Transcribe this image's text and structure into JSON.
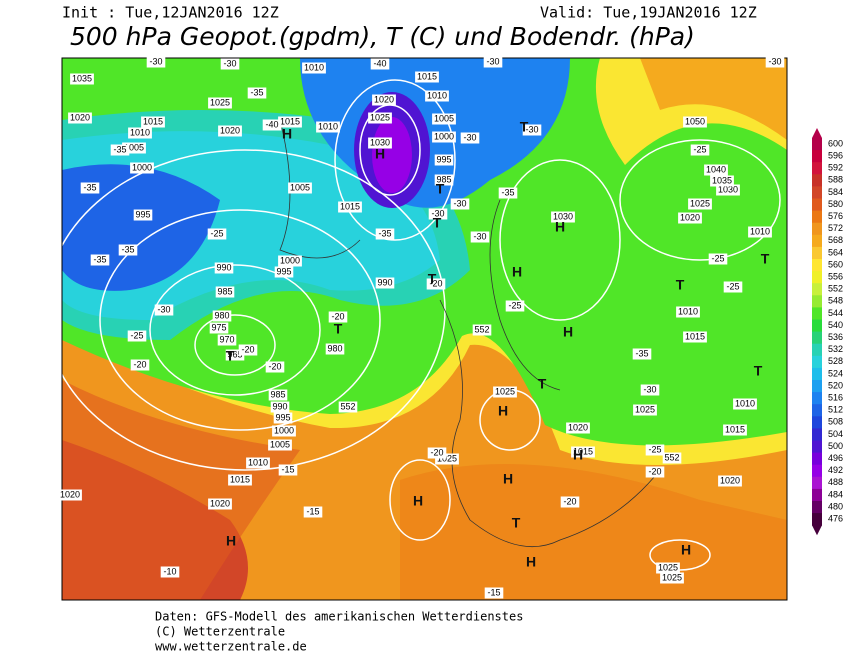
{
  "header": {
    "init": "Init : Tue,12JAN2016 12Z",
    "valid": "Valid: Tue,19JAN2016 12Z",
    "title": "500 hPa Geopot.(gpdm), T (C) und Bodendr. (hPa)"
  },
  "colorbar": {
    "values": [
      600,
      596,
      592,
      588,
      584,
      580,
      576,
      572,
      568,
      564,
      560,
      556,
      552,
      548,
      544,
      540,
      536,
      532,
      528,
      524,
      520,
      516,
      512,
      508,
      504,
      500,
      496,
      492,
      488,
      484,
      480,
      476
    ],
    "colors": [
      "#b4004a",
      "#c8003c",
      "#d2143c",
      "#c83228",
      "#d24628",
      "#e05a1e",
      "#eb7814",
      "#f0961e",
      "#f5aa1e",
      "#fac832",
      "#ffe632",
      "#f0f028",
      "#c8f03c",
      "#96eb32",
      "#50e628",
      "#28dc3c",
      "#28d278",
      "#28d2b4",
      "#28d2dc",
      "#1ebeeb",
      "#1ea0f0",
      "#1e82f0",
      "#1e64e6",
      "#1e46dc",
      "#3228d2",
      "#5014d2",
      "#7800dc",
      "#9600e6",
      "#aa14d2",
      "#8c0096",
      "#640064",
      "#46003c"
    ]
  },
  "map": {
    "centers": [
      "H",
      "H",
      "H",
      "H",
      "H",
      "H",
      "H",
      "H",
      "H",
      "H",
      "H",
      "H",
      "T",
      "T",
      "T",
      "T",
      "T",
      "T",
      "T",
      "T",
      "T",
      "T",
      "T"
    ],
    "pressure": [
      "1035",
      "1025",
      "1015",
      "1010",
      "1005",
      "1000",
      "1020",
      "1020",
      "1015",
      "1010",
      "1010",
      "1020",
      "1025",
      "1030",
      "1015",
      "1010",
      "1005",
      "1000",
      "995",
      "985",
      "1005",
      "1015",
      "995",
      "990",
      "1000",
      "995",
      "985",
      "980",
      "975",
      "970",
      "965",
      "980",
      "990",
      "985",
      "990",
      "995",
      "1000",
      "1005",
      "1010",
      "1015",
      "1020",
      "1025",
      "1025",
      "1020",
      "1015",
      "1025",
      "1010",
      "1015",
      "1010",
      "1015",
      "1030",
      "1020",
      "1025",
      "1030",
      "1035",
      "1040",
      "1050",
      "1010",
      "1020",
      "1025",
      "1025",
      "1020"
    ],
    "temperature": [
      "-30",
      "-30",
      "-35",
      "-40",
      "-40",
      "-35",
      "-35",
      "-25",
      "-35",
      "-35",
      "-30",
      "-25",
      "-20",
      "-20",
      "-20",
      "-20",
      "-35",
      "-30",
      "-30",
      "-30",
      "-30",
      "-35",
      "-30",
      "-20",
      "-25",
      "-35",
      "-30",
      "-25",
      "-25",
      "-25",
      "-20",
      "-20",
      "-20",
      "-15",
      "-15",
      "-10",
      "-15",
      "-30",
      "-30",
      "-25"
    ],
    "geopotential": [
      "552",
      "552",
      "552"
    ]
  },
  "footer": {
    "source": "Daten: GFS-Modell des amerikanischen Wetterdienstes",
    "copyright": "(C) Wetterzentrale",
    "url": "www.wetterzentrale.de"
  }
}
